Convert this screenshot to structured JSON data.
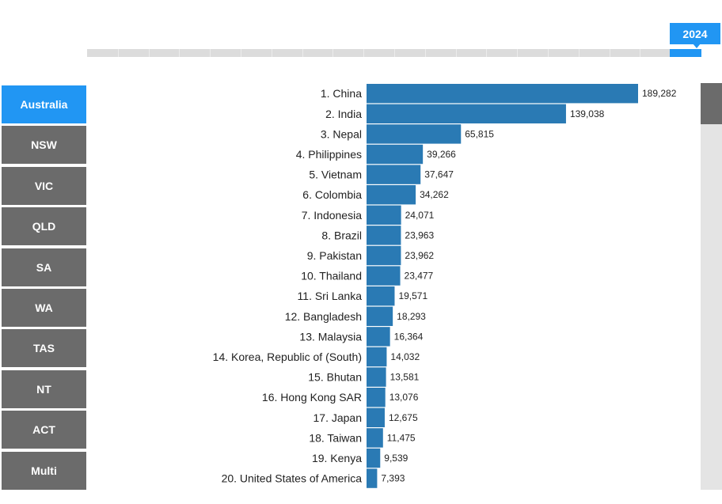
{
  "timeline": {
    "year": "2024"
  },
  "regions": [
    {
      "label": "Australia",
      "active": true
    },
    {
      "label": "NSW",
      "active": false
    },
    {
      "label": "VIC",
      "active": false
    },
    {
      "label": "QLD",
      "active": false
    },
    {
      "label": "SA",
      "active": false
    },
    {
      "label": "WA",
      "active": false
    },
    {
      "label": "TAS",
      "active": false
    },
    {
      "label": "NT",
      "active": false
    },
    {
      "label": "ACT",
      "active": false
    },
    {
      "label": "Multi",
      "active": false
    }
  ],
  "colors": {
    "bar": "#2a7ab4",
    "accent": "#2196f3",
    "menu": "#6b6b6b"
  },
  "chart_data": {
    "type": "bar",
    "orientation": "horizontal",
    "categories": [
      "1. China",
      "2. India",
      "3. Nepal",
      "4. Philippines",
      "5. Vietnam",
      "6. Colombia",
      "7. Indonesia",
      "8. Brazil",
      "9. Pakistan",
      "10. Thailand",
      "11. Sri Lanka",
      "12. Bangladesh",
      "13. Malaysia",
      "14. Korea, Republic of (South)",
      "15. Bhutan",
      "16. Hong Kong SAR",
      "17. Japan",
      "18. Taiwan",
      "19. Kenya",
      "20. United States of America"
    ],
    "values": [
      189282,
      139038,
      65815,
      39266,
      37647,
      34262,
      24071,
      23963,
      23962,
      23477,
      19571,
      18293,
      16364,
      14032,
      13581,
      13076,
      12675,
      11475,
      9539,
      7393
    ],
    "value_labels": [
      "189,282",
      "139,038",
      "65,815",
      "39,266",
      "37,647",
      "34,262",
      "24,071",
      "23,963",
      "23,962",
      "23,477",
      "19,571",
      "18,293",
      "16,364",
      "14,032",
      "13,581",
      "13,076",
      "12,675",
      "11,475",
      "9,539",
      "7,393"
    ],
    "title": "",
    "xlabel": "",
    "ylabel": "",
    "xlim": [
      0,
      189282
    ],
    "grid": false,
    "legend": "none"
  }
}
